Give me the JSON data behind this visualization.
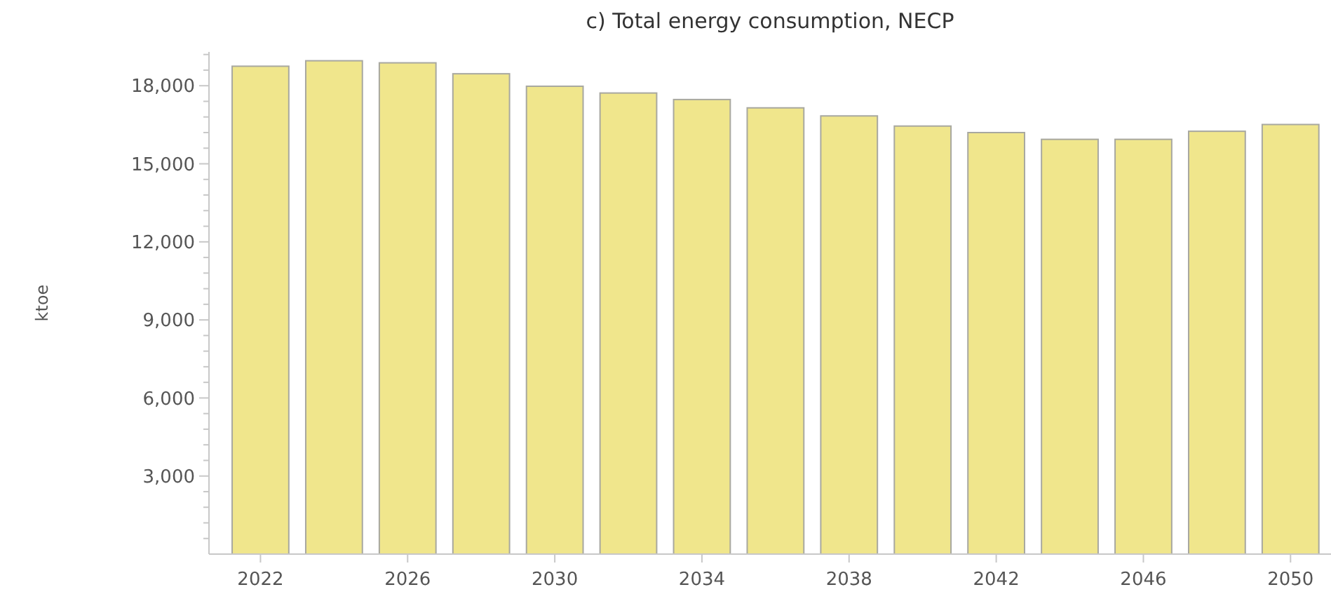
{
  "chart_data": {
    "type": "bar",
    "title": "c) Total energy consumption, NECP",
    "ylabel": "ktoe",
    "x": [
      2022,
      2024,
      2026,
      2028,
      2030,
      2032,
      2034,
      2036,
      2038,
      2040,
      2042,
      2044,
      2046,
      2048,
      2050
    ],
    "values": [
      18750,
      18960,
      18880,
      18460,
      17980,
      17720,
      17470,
      17150,
      16840,
      16450,
      16200,
      15940,
      15940,
      16250,
      16510
    ],
    "color": "#f0e68c",
    "xlim": [
      2020.6,
      2051.1
    ],
    "xticks": [
      2022,
      2026,
      2030,
      2034,
      2038,
      2042,
      2046,
      2050
    ],
    "ylim": [
      0,
      19300
    ],
    "yticks": [
      {
        "value": 600,
        "label": null
      },
      {
        "value": 1200,
        "label": null
      },
      {
        "value": 1800,
        "label": null
      },
      {
        "value": 2400,
        "label": null
      },
      {
        "value": 3000,
        "label": "3,000"
      },
      {
        "value": 3600,
        "label": null
      },
      {
        "value": 4200,
        "label": null
      },
      {
        "value": 4800,
        "label": null
      },
      {
        "value": 5400,
        "label": null
      },
      {
        "value": 6000,
        "label": "6,000"
      },
      {
        "value": 6600,
        "label": null
      },
      {
        "value": 7200,
        "label": null
      },
      {
        "value": 7800,
        "label": null
      },
      {
        "value": 8400,
        "label": null
      },
      {
        "value": 9000,
        "label": "9,000"
      },
      {
        "value": 9600,
        "label": null
      },
      {
        "value": 10200,
        "label": null
      },
      {
        "value": 10800,
        "label": null
      },
      {
        "value": 11400,
        "label": null
      },
      {
        "value": 12000,
        "label": "12,000"
      },
      {
        "value": 12600,
        "label": null
      },
      {
        "value": 13200,
        "label": null
      },
      {
        "value": 13800,
        "label": null
      },
      {
        "value": 14400,
        "label": null
      },
      {
        "value": 15000,
        "label": "15,000"
      },
      {
        "value": 15600,
        "label": null
      },
      {
        "value": 16200,
        "label": null
      },
      {
        "value": 16800,
        "label": null
      },
      {
        "value": 17400,
        "label": null
      },
      {
        "value": 18000,
        "label": "18,000"
      },
      {
        "value": 18600,
        "label": null
      },
      {
        "value": 19200,
        "label": null
      }
    ],
    "grid": false
  }
}
